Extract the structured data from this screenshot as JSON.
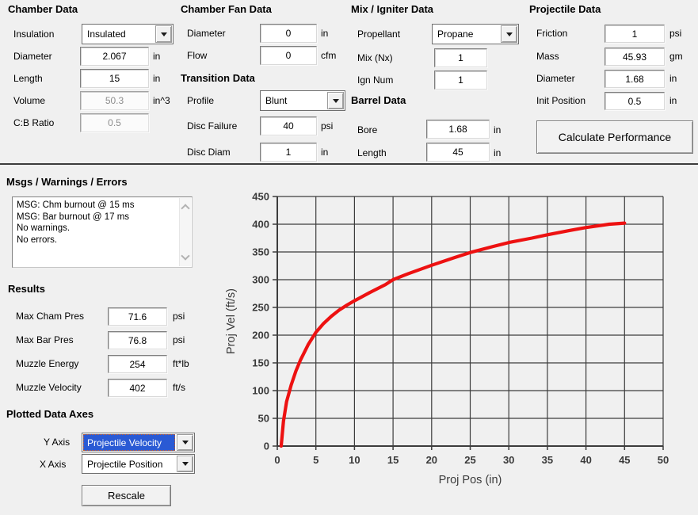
{
  "window": {
    "bg_color": "#f0f0f0",
    "divider_color": "#3c3c3c"
  },
  "icons": {
    "dropdown_arrow": "css-triangle-down",
    "scroll_up": "css-chevron-up",
    "scroll_down": "css-chevron-down"
  },
  "colors": {
    "selection": "#2a5ad4",
    "curve": "#ed1111",
    "grid": "#3d3d3d"
  },
  "sections": {
    "chamber": {
      "title": "Chamber Data",
      "insulation": {
        "label": "Insulation",
        "value": "Insulated"
      },
      "diameter": {
        "label": "Diameter",
        "value": "2.067",
        "unit": "in"
      },
      "length": {
        "label": "Length",
        "value": "15",
        "unit": "in"
      },
      "volume": {
        "label": "Volume",
        "value": "50.3",
        "unit": "in^3"
      },
      "cb_ratio": {
        "label": "C:B Ratio",
        "value": "0.5"
      }
    },
    "fan": {
      "title": "Chamber Fan Data",
      "diameter": {
        "label": "Diameter",
        "value": "0",
        "unit": "in"
      },
      "flow": {
        "label": "Flow",
        "value": "0",
        "unit": "cfm"
      }
    },
    "transition": {
      "title": "Transition Data",
      "profile": {
        "label": "Profile",
        "value": "Blunt"
      },
      "disc_failure": {
        "label": "Disc Failure",
        "value": "40",
        "unit": "psi"
      },
      "disc_diam": {
        "label": "Disc Diam",
        "value": "1",
        "unit": "in"
      }
    },
    "mix": {
      "title": "Mix / Igniter Data",
      "propellant": {
        "label": "Propellant",
        "value": "Propane"
      },
      "mix_nx": {
        "label": "Mix (Nx)",
        "value": "1"
      },
      "ign_num": {
        "label": "Ign Num",
        "value": "1"
      }
    },
    "barrel": {
      "title": "Barrel Data",
      "bore": {
        "label": "Bore",
        "value": "1.68",
        "unit": "in"
      },
      "length": {
        "label": "Length",
        "value": "45",
        "unit": "in"
      }
    },
    "projectile": {
      "title": "Projectile Data",
      "friction": {
        "label": "Friction",
        "value": "1",
        "unit": "psi"
      },
      "mass": {
        "label": "Mass",
        "value": "45.93",
        "unit": "gm"
      },
      "diameter": {
        "label": "Diameter",
        "value": "1.68",
        "unit": "in"
      },
      "init_position": {
        "label": "Init Position",
        "value": "0.5",
        "unit": "in"
      }
    },
    "calculate_button": "Calculate Performance"
  },
  "messages": {
    "title": "Msgs / Warnings / Errors",
    "lines": [
      "MSG: Chm burnout @ 15 ms",
      "MSG: Bar burnout @ 17 ms",
      "No warnings.",
      "No errors."
    ]
  },
  "results": {
    "title": "Results",
    "rows": [
      {
        "label": "Max Cham Pres",
        "value": "71.6",
        "unit": "psi"
      },
      {
        "label": "Max Bar Pres",
        "value": "76.8",
        "unit": "psi"
      },
      {
        "label": "Muzzle Energy",
        "value": "254",
        "unit": "ft*lb"
      },
      {
        "label": "Muzzle Velocity",
        "value": "402",
        "unit": "ft/s"
      }
    ]
  },
  "plot_controls": {
    "title": "Plotted Data Axes",
    "y_axis": {
      "label": "Y Axis",
      "value": "Projectile Velocity"
    },
    "x_axis": {
      "label": "X Axis",
      "value": "Projectile Position"
    },
    "rescale_button": "Rescale"
  },
  "chart_data": {
    "type": "line",
    "title": "",
    "xlabel": "Proj Pos (in)",
    "ylabel": "Proj Vel (ft/s)",
    "xlim": [
      0,
      50
    ],
    "ylim": [
      0,
      450
    ],
    "xticks": [
      0,
      5,
      10,
      15,
      20,
      25,
      30,
      35,
      40,
      45,
      50
    ],
    "yticks": [
      0,
      50,
      100,
      150,
      200,
      250,
      300,
      350,
      400,
      450
    ],
    "grid": true,
    "grid_color": "#3d3d3d",
    "legend": "none",
    "series": [
      {
        "name": "Projectile Velocity vs Projectile Position",
        "color": "#ed1111",
        "x": [
          0.5,
          0.8,
          1.2,
          1.8,
          2.4,
          3,
          4,
          5,
          6,
          7,
          8,
          9,
          10,
          12,
          14,
          15,
          17,
          20,
          23,
          25,
          28,
          30,
          33,
          35,
          38,
          40,
          43,
          45
        ],
        "y": [
          0,
          45,
          80,
          110,
          135,
          155,
          183,
          205,
          221,
          234,
          245,
          254,
          262,
          277,
          291,
          300,
          311,
          326,
          340,
          349,
          360,
          367,
          375,
          381,
          389,
          394,
          400,
          402
        ]
      }
    ]
  }
}
